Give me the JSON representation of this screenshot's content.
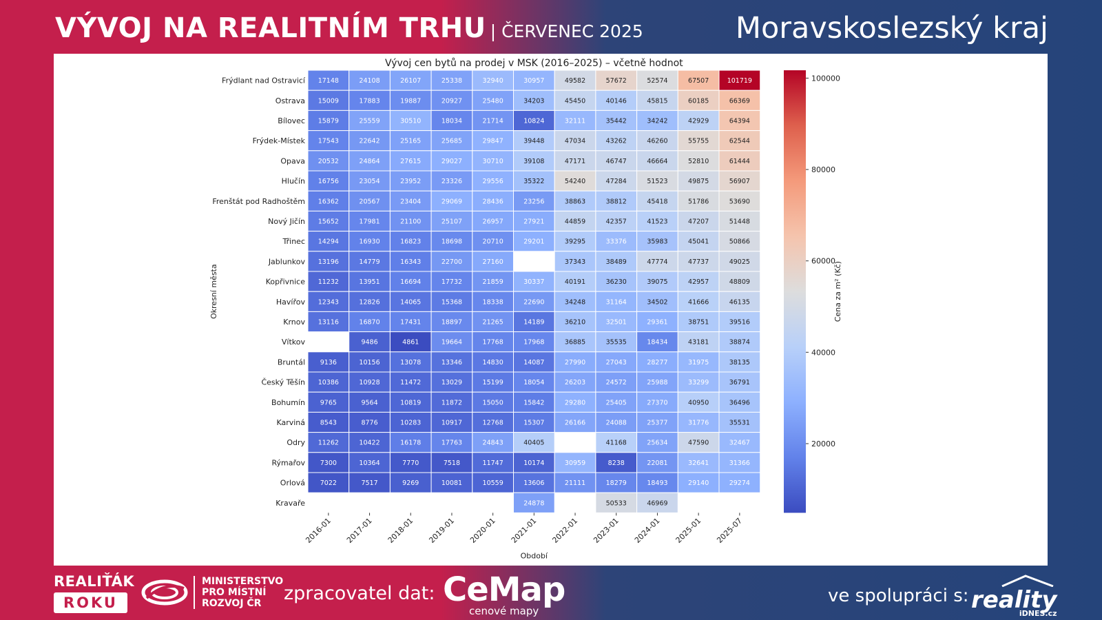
{
  "header": {
    "title": "VÝVOJ NA REALITNÍM TRHU",
    "subtitle": "| ČERVENEC 2025",
    "region": "Moravskoslezský kraj"
  },
  "footer": {
    "award_line1": "REALIŤÁK",
    "award_line2": "ROKU",
    "ministry": [
      "MINISTERSTVO",
      "PRO MÍSTNÍ",
      "ROZVOJ ČR"
    ],
    "processor_label": "zpracovatel dat:",
    "processor_logo": "CeMap",
    "processor_sub": "cenové mapy",
    "partner_label": "ve spolupráci s:",
    "partner_logo": "reality",
    "partner_sub": "iDNES.cz"
  },
  "colors": {
    "brand_red": "#c41f4c",
    "brand_blue": "#25447a",
    "cmap_low": "#3b4cc0",
    "cmap_mid": "#dddddd",
    "cmap_high": "#b40426"
  },
  "chart_data": {
    "type": "heatmap",
    "title": "Vývoj cen bytů na prodej v MSK (2016–2025) – včetně hodnot",
    "xlabel": "Období",
    "ylabel": "Okresní města",
    "colorbar_label": "Cena za m² (Kč)",
    "colorbar_ticks": [
      20000,
      40000,
      60000,
      80000,
      100000
    ],
    "vmin": 4861,
    "vmax": 101719,
    "columns": [
      "2016-01",
      "2017-01",
      "2018-01",
      "2019-01",
      "2020-01",
      "2021-01",
      "2022-01",
      "2023-01",
      "2024-01",
      "2025-01",
      "2025-07"
    ],
    "rows": [
      {
        "city": "Frýdlant nad Ostravicí",
        "values": [
          17148,
          24108,
          26107,
          25338,
          32940,
          30957,
          49582,
          57672,
          52574,
          67507,
          101719
        ]
      },
      {
        "city": "Ostrava",
        "values": [
          15009,
          17883,
          19887,
          20927,
          25480,
          34203,
          45450,
          40146,
          45815,
          60185,
          66369
        ]
      },
      {
        "city": "Bílovec",
        "values": [
          15879,
          25559,
          30510,
          18034,
          21714,
          10824,
          32111,
          35442,
          34242,
          42929,
          64394
        ]
      },
      {
        "city": "Frýdek-Místek",
        "values": [
          17543,
          22642,
          25165,
          25685,
          29847,
          39448,
          47034,
          43262,
          46260,
          55755,
          62544
        ]
      },
      {
        "city": "Opava",
        "values": [
          20532,
          24864,
          27615,
          29027,
          30710,
          39108,
          47171,
          46747,
          46664,
          52810,
          61444
        ]
      },
      {
        "city": "Hlučín",
        "values": [
          16756,
          23054,
          23952,
          23326,
          29556,
          35322,
          54240,
          47284,
          51523,
          49875,
          56907
        ]
      },
      {
        "city": "Frenštát pod Radhoštěm",
        "values": [
          16362,
          20567,
          23404,
          29069,
          28436,
          23256,
          38863,
          38812,
          45418,
          51786,
          53690
        ]
      },
      {
        "city": "Nový Jičín",
        "values": [
          15652,
          17981,
          21100,
          25107,
          26957,
          27921,
          44859,
          42357,
          41523,
          47207,
          51448
        ]
      },
      {
        "city": "Třinec",
        "values": [
          14294,
          16930,
          16823,
          18698,
          20710,
          29201,
          39295,
          33376,
          35983,
          45041,
          50866
        ]
      },
      {
        "city": "Jablunkov",
        "values": [
          13196,
          14779,
          16343,
          22700,
          27160,
          null,
          37343,
          38489,
          47774,
          47737,
          49025
        ]
      },
      {
        "city": "Kopřivnice",
        "values": [
          11232,
          13951,
          16694,
          17732,
          21859,
          30337,
          40191,
          36230,
          39075,
          42957,
          48809
        ]
      },
      {
        "city": "Havířov",
        "values": [
          12343,
          12826,
          14065,
          15368,
          18338,
          22690,
          34248,
          31164,
          34502,
          41666,
          46135
        ]
      },
      {
        "city": "Krnov",
        "values": [
          13116,
          16870,
          17431,
          18897,
          21265,
          14189,
          36210,
          32501,
          29361,
          38751,
          39516
        ]
      },
      {
        "city": "Vítkov",
        "values": [
          null,
          9486,
          4861,
          19664,
          17768,
          17968,
          36885,
          35535,
          18434,
          43181,
          38874
        ]
      },
      {
        "city": "Bruntál",
        "values": [
          9136,
          10156,
          13078,
          13346,
          14830,
          14087,
          27990,
          27043,
          28277,
          31975,
          38135
        ]
      },
      {
        "city": "Český Těšín",
        "values": [
          10386,
          10928,
          11472,
          13029,
          15199,
          18054,
          26203,
          24572,
          25988,
          33299,
          36791
        ]
      },
      {
        "city": "Bohumín",
        "values": [
          9765,
          9564,
          10819,
          11872,
          15050,
          15842,
          29280,
          25405,
          27370,
          40950,
          36496
        ]
      },
      {
        "city": "Karviná",
        "values": [
          8543,
          8776,
          10283,
          10917,
          12768,
          15307,
          26166,
          24088,
          25377,
          31776,
          35531
        ]
      },
      {
        "city": "Odry",
        "values": [
          11262,
          10422,
          16178,
          17763,
          24843,
          40405,
          null,
          41168,
          25634,
          47590,
          32467
        ]
      },
      {
        "city": "Rýmařov",
        "values": [
          7300,
          10364,
          7770,
          7518,
          11747,
          10174,
          30959,
          8238,
          22081,
          32641,
          31366
        ]
      },
      {
        "city": "Orlová",
        "values": [
          7022,
          7517,
          9269,
          10081,
          10559,
          13606,
          21111,
          18279,
          18493,
          29140,
          29274
        ]
      },
      {
        "city": "Kravaře",
        "values": [
          null,
          null,
          null,
          null,
          null,
          24878,
          null,
          50533,
          46969,
          null,
          null
        ]
      }
    ]
  }
}
